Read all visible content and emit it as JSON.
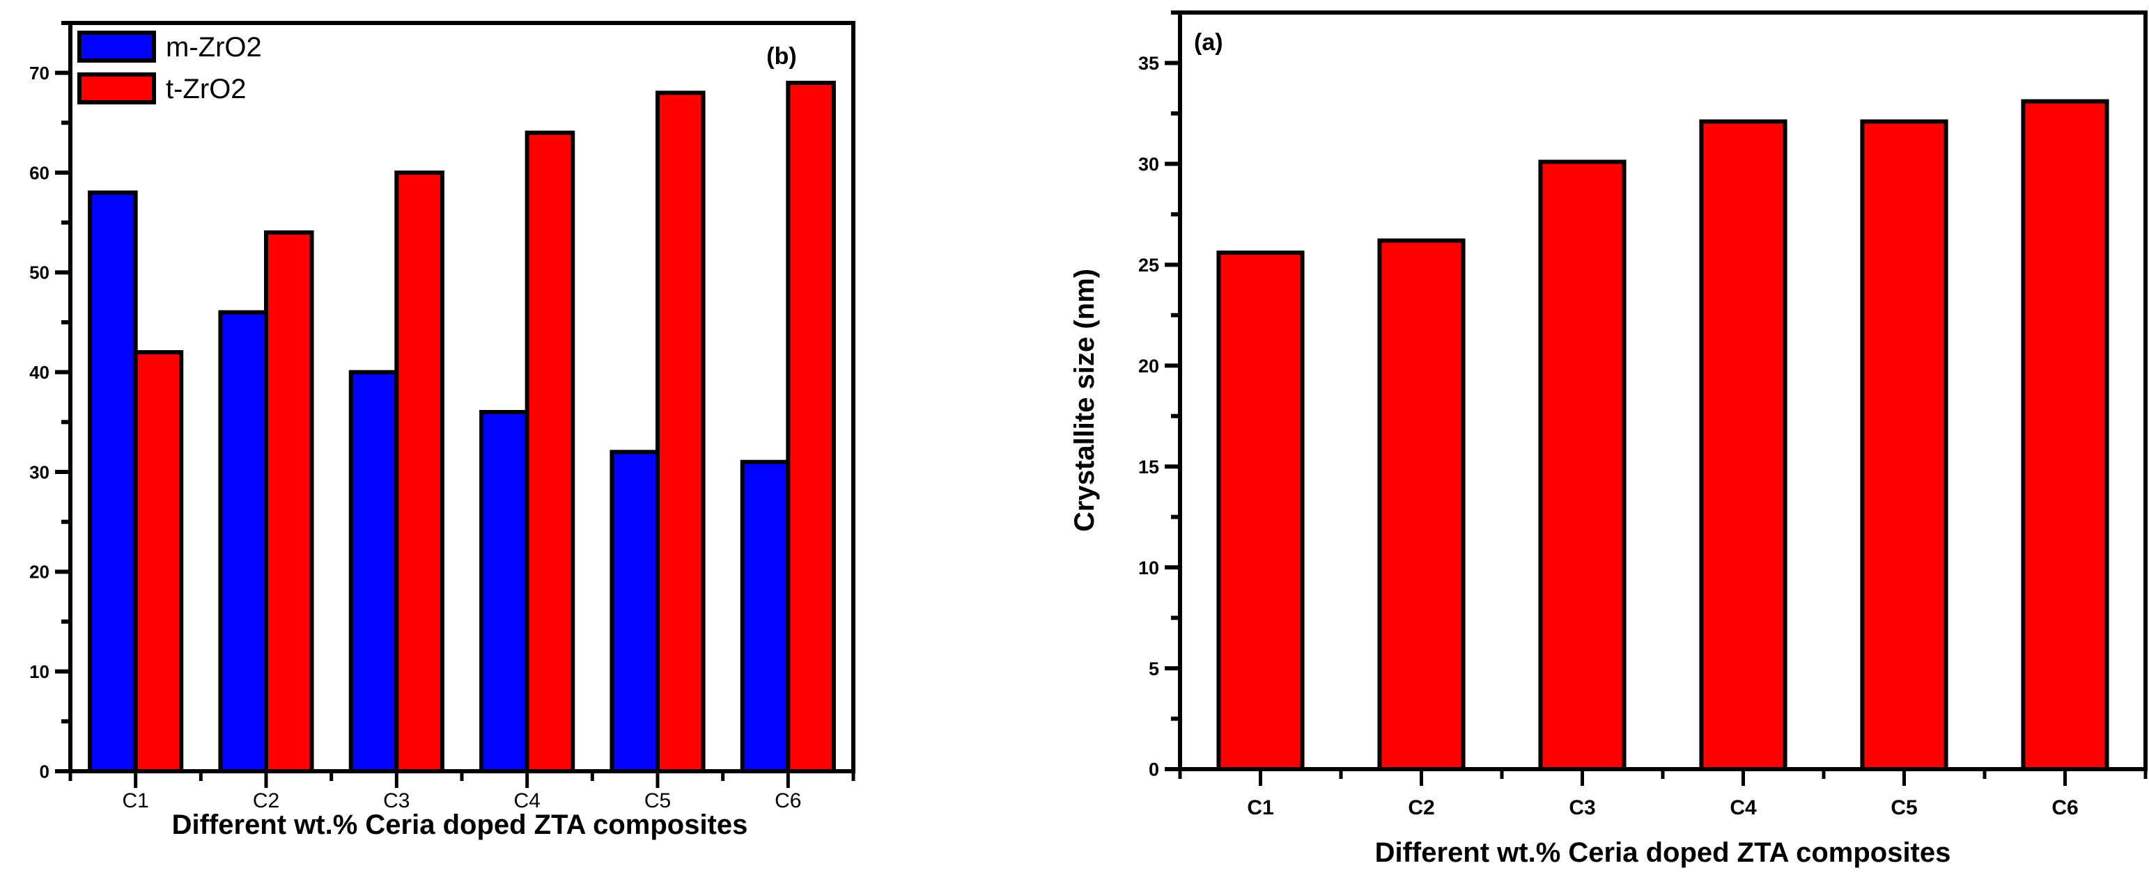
{
  "chart_data": [
    {
      "id": "b",
      "type": "bar",
      "panel_label": "(b)",
      "title": "",
      "xlabel": "Different wt.% Ceria doped ZTA composites",
      "ylabel": "",
      "categories": [
        "C1",
        "C2",
        "C3",
        "C4",
        "C5",
        "C6"
      ],
      "series": [
        {
          "name": "m-ZrO2",
          "color": "#0000ff",
          "values": [
            58,
            46,
            40,
            36,
            32,
            31
          ]
        },
        {
          "name": "t-ZrO2",
          "color": "#ff0000",
          "values": [
            42,
            54,
            60,
            64,
            68,
            69
          ]
        }
      ],
      "ylim": [
        0,
        75
      ],
      "yticks": [
        0,
        10,
        20,
        30,
        40,
        50,
        60,
        70
      ],
      "yminor_step": 5,
      "grid": false,
      "legend": "top-left"
    },
    {
      "id": "a",
      "type": "bar",
      "panel_label": "(a)",
      "title": "",
      "xlabel": "Different wt.% Ceria doped ZTA composites",
      "ylabel": "Crystallite size (nm)",
      "categories": [
        "C1",
        "C2",
        "C3",
        "C4",
        "C5",
        "C6"
      ],
      "series": [
        {
          "name": "Crystallite size",
          "color": "#ff0000",
          "values": [
            25.6,
            26.2,
            30.1,
            32.1,
            32.1,
            33.1
          ]
        }
      ],
      "ylim": [
        0,
        37.5
      ],
      "yticks": [
        0,
        5,
        10,
        15,
        20,
        25,
        30,
        35
      ],
      "yminor_step": 2.5,
      "grid": false,
      "legend": "none"
    }
  ]
}
